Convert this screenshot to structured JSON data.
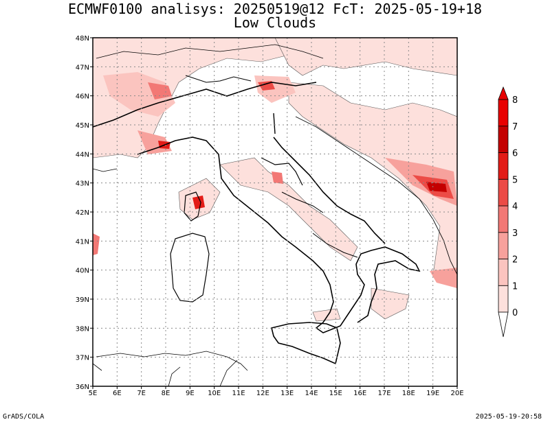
{
  "title_line1": "ECMWF0100 analisys: 20250519@12 FcT: 2025-05-19+18",
  "title_line2": "Low Clouds",
  "footer_left": "GrADS/COLA",
  "footer_right": "2025-05-19-20:58",
  "map": {
    "lon_range": [
      5,
      20
    ],
    "lat_range": [
      36,
      48
    ],
    "lon_labels": [
      "5E",
      "6E",
      "7E",
      "8E",
      "9E",
      "10E",
      "11E",
      "12E",
      "13E",
      "14E",
      "15E",
      "16E",
      "17E",
      "18E",
      "19E",
      "20E"
    ],
    "lat_labels": [
      "36N",
      "37N",
      "38N",
      "39N",
      "40N",
      "41N",
      "42N",
      "43N",
      "44N",
      "45N",
      "46N",
      "47N",
      "48N"
    ],
    "grid": "dotted"
  },
  "colorbar": {
    "labels": [
      "0",
      "1",
      "2",
      "3",
      "4",
      "5",
      "6",
      "7",
      "8"
    ],
    "colors": [
      "#ffffff",
      "#fde0dc",
      "#fbc4bf",
      "#f7a19c",
      "#f27875",
      "#ec4b46",
      "#e31c17",
      "#c40000",
      "#e80000"
    ]
  }
}
